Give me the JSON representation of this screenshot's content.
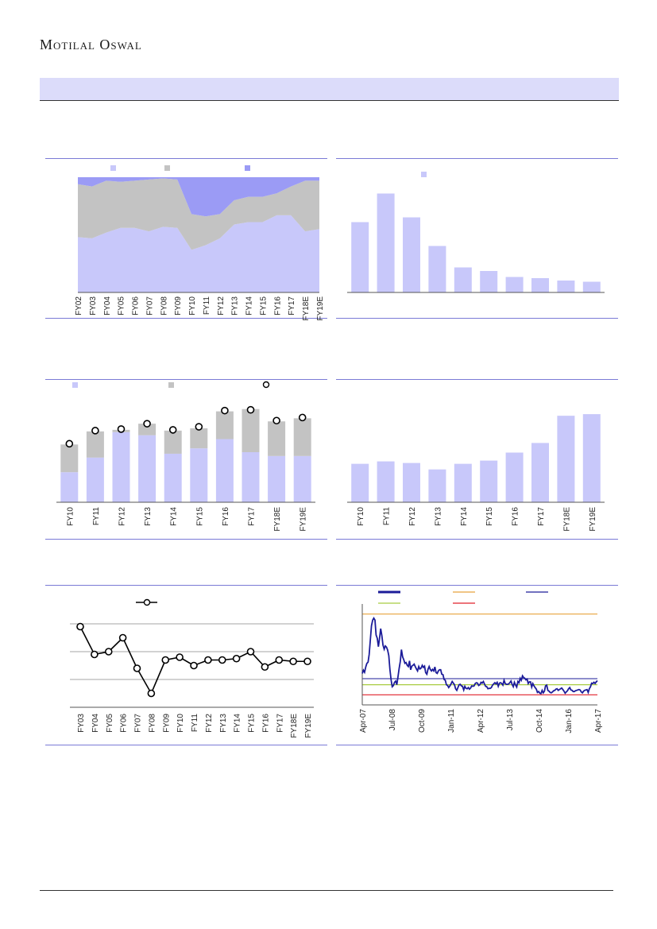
{
  "header": {
    "brand": "Motilal Oswal"
  },
  "colors": {
    "lavender": "#c8c8fa",
    "grey": "#c3c3c3",
    "blue": "#9b9bf5",
    "navy": "#1c1c99",
    "orange": "#e8a23c",
    "green": "#a8cc40",
    "red": "#e0202a",
    "panelRule": "#7a7ad6"
  },
  "chart_data": [
    {
      "id": "c1",
      "type": "area",
      "legend": [
        "",
        "",
        ""
      ],
      "categories": [
        "FY02",
        "FY03",
        "FY04",
        "FY05",
        "FY06",
        "FY07",
        "FY08",
        "FY09",
        "FY10",
        "FY11",
        "FY12",
        "FY13",
        "FY14",
        "FY15",
        "FY16",
        "FY17",
        "FY18E",
        "FY19E"
      ],
      "series": [
        {
          "values": [
            48,
            47,
            52,
            56,
            56,
            53,
            57,
            56,
            37,
            41,
            47,
            59,
            61,
            61,
            67,
            67,
            53,
            55
          ]
        },
        {
          "values": [
            46,
            45,
            45,
            40,
            41,
            45,
            42,
            42,
            31,
            25,
            21,
            21,
            22,
            22,
            19,
            25,
            44,
            42
          ]
        },
        {
          "values": [
            6,
            8,
            3,
            4,
            3,
            2,
            1,
            2,
            32,
            34,
            32,
            20,
            17,
            17,
            14,
            8,
            3,
            3
          ]
        }
      ],
      "ylim": [
        0,
        100
      ]
    },
    {
      "id": "c2",
      "type": "bar",
      "legend": [
        ""
      ],
      "categories": [
        "",
        "",
        "",
        "",
        "",
        "",
        "",
        "",
        "",
        ""
      ],
      "values": [
        59,
        83,
        63,
        39,
        21,
        18,
        13,
        12,
        10,
        9
      ],
      "ylim": [
        0,
        100
      ]
    },
    {
      "id": "c3",
      "type": "bar",
      "legend": [
        "",
        "",
        ""
      ],
      "categories": [
        "FY10",
        "FY11",
        "FY12",
        "FY13",
        "FY14",
        "FY15",
        "FY16",
        "FY17",
        "FY18E",
        "FY19E"
      ],
      "series": [
        {
          "values": [
            39,
            58,
            91,
            87,
            63,
            70,
            82,
            65,
            60,
            60
          ]
        },
        {
          "values": [
            36,
            34,
            3,
            15,
            30,
            26,
            36,
            56,
            45,
            49
          ]
        }
      ],
      "markers": [
        76,
        93,
        95,
        102,
        94,
        98,
        119,
        120,
        106,
        110
      ],
      "ylim": [
        0,
        130
      ]
    },
    {
      "id": "c4",
      "type": "bar",
      "categories": [
        "FY10",
        "FY11",
        "FY12",
        "FY13",
        "FY14",
        "FY15",
        "FY16",
        "FY17",
        "FY18E",
        "FY19E"
      ],
      "values": [
        48,
        51,
        49,
        41,
        48,
        52,
        62,
        74,
        108,
        110
      ],
      "ylim": [
        0,
        125
      ]
    },
    {
      "id": "c5",
      "type": "line",
      "legend": [
        ""
      ],
      "categories": [
        "FY03",
        "FY04",
        "FY05",
        "FY06",
        "FY07",
        "FY08",
        "FY09",
        "FY10",
        "FY11",
        "FY12",
        "FY13",
        "FY14",
        "FY15",
        "FY16",
        "FY17",
        "FY18E",
        "FY19E"
      ],
      "values": [
        29,
        19,
        20,
        25,
        14,
        5,
        17,
        18,
        15,
        17,
        17,
        17.5,
        20,
        14.5,
        17,
        16.5,
        16.5
      ],
      "ylim": [
        0,
        40
      ]
    },
    {
      "id": "c6",
      "type": "line",
      "legend": [
        "",
        "",
        "",
        "",
        ""
      ],
      "x_ticks": [
        "Apr-07",
        "Jul-08",
        "Oct-09",
        "Jan-11",
        "Apr-12",
        "Jul-13",
        "Oct-14",
        "Jan-16",
        "Apr-17"
      ],
      "levels": {
        "upper": 27.5,
        "mean": 11.5,
        "lower_band": 10.0,
        "lowest": 7.5
      },
      "values": [
        12.8,
        13.6,
        13.1,
        14.4,
        15.3,
        15.6,
        17.5,
        21.2,
        24.6,
        26.0,
        26.5,
        26.0,
        22.3,
        21.5,
        19.4,
        21.6,
        23.9,
        22.1,
        19.8,
        18.8,
        19.6,
        19.3,
        18.6,
        17.2,
        13.8,
        11.2,
        9.5,
        9.8,
        10.6,
        10.9,
        10.0,
        12.0,
        14.0,
        15.8,
        18.7,
        16.9,
        16.2,
        15.3,
        15.5,
        14.8,
        14.5,
        15.9,
        13.7,
        14.6,
        14.8,
        15.1,
        14.5,
        13.9,
        13.4,
        14.5,
        13.9,
        14.1,
        14.8,
        14.3,
        14.6,
        13.0,
        12.6,
        13.8,
        14.5,
        13.8,
        13.4,
        13.8,
        13.4,
        14.4,
        13.0,
        12.8,
        13.4,
        13.7,
        13.7,
        12.6,
        12.5,
        11.3,
        11.1,
        10.0,
        9.8,
        9.3,
        9.7,
        10.2,
        10.8,
        10.4,
        10.0,
        9.0,
        8.6,
        9.3,
        10.0,
        10.1,
        9.7,
        9.6,
        8.7,
        9.6,
        9.1,
        9.0,
        9.3,
        8.9,
        9.2,
        9.7,
        9.6,
        9.7,
        10.3,
        10.5,
        10.4,
        9.8,
        10.0,
        10.6,
        10.4,
        10.8,
        10.2,
        9.6,
        9.5,
        9.0,
        9.1,
        9.1,
        9.3,
        9.9,
        10.2,
        10.5,
        10.2,
        10.6,
        9.6,
        10.4,
        10.5,
        10.3,
        9.9,
        11.1,
        10.3,
        10.1,
        10.1,
        10.2,
        10.5,
        10.9,
        10.1,
        9.5,
        10.6,
        9.9,
        9.4,
        10.8,
        10.5,
        11.6,
        11.1,
        12.2,
        11.8,
        11.6,
        11.2,
        11.4,
        10.3,
        10.7,
        10.7,
        9.4,
        10.3,
        9.7,
        9.3,
        8.9,
        8.1,
        8.3,
        7.9,
        7.8,
        8.6,
        8.0,
        8.4,
        9.7,
        9.9,
        8.6,
        8.4,
        8.1,
        8.0,
        8.2,
        8.5,
        8.6,
        8.9,
        9.0,
        8.6,
        8.8,
        9.0,
        9.2,
        8.8,
        8.4,
        7.9,
        8.2,
        8.5,
        9.0,
        9.3,
        8.7,
        8.6,
        8.3,
        8.3,
        8.5,
        8.6,
        8.7,
        8.8,
        8.7,
        8.2,
        8.0,
        8.4,
        8.6,
        8.7,
        8.8,
        8.1,
        9.0,
        9.5,
        10.4,
        10.3,
        10.6,
        10.3,
        10.7,
        11.0
      ],
      "ylim": [
        5,
        30
      ]
    }
  ]
}
